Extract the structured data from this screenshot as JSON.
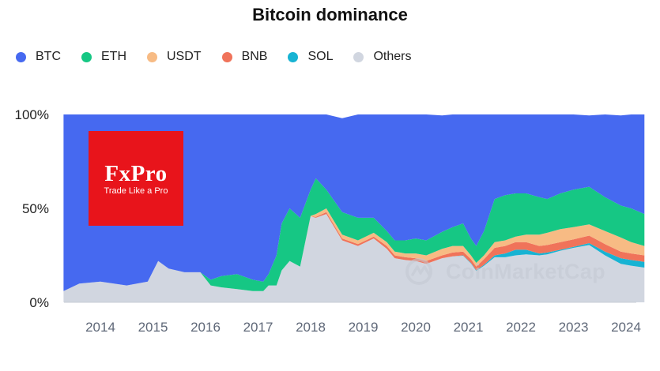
{
  "chart_data": {
    "type": "area",
    "stacked": true,
    "title": "Bitcoin dominance",
    "x_tick_labels": [
      "2014",
      "2015",
      "2016",
      "2017",
      "2018",
      "2019",
      "2020",
      "2021",
      "2022",
      "2023",
      "2024"
    ],
    "y_tick_labels": [
      "100%",
      "50%",
      "0%"
    ],
    "ylim": [
      0,
      100
    ],
    "legend_position": "top-left",
    "x": [
      2013.3,
      2013.6,
      2014.0,
      2014.5,
      2014.9,
      2015.1,
      2015.3,
      2015.6,
      2015.9,
      2016.1,
      2016.3,
      2016.6,
      2016.9,
      2017.1,
      2017.2,
      2017.35,
      2017.45,
      2017.6,
      2017.8,
      2018.0,
      2018.1,
      2018.3,
      2018.6,
      2018.9,
      2019.2,
      2019.45,
      2019.6,
      2019.8,
      2020.0,
      2020.2,
      2020.5,
      2020.7,
      2020.9,
      2021.05,
      2021.15,
      2021.3,
      2021.5,
      2021.7,
      2021.9,
      2022.1,
      2022.35,
      2022.5,
      2022.75,
      2023.0,
      2023.3,
      2023.6,
      2023.9,
      2024.1,
      2024.35
    ],
    "series": [
      {
        "name": "BTC",
        "color": "#4669f0",
        "values": [
          94,
          90,
          89,
          91,
          89,
          78,
          82,
          84,
          84,
          88,
          86,
          85,
          88,
          89,
          85,
          75,
          58,
          50,
          55,
          40,
          34,
          40,
          50,
          55,
          55,
          62,
          67,
          67,
          66,
          67,
          62,
          60,
          58,
          66,
          70,
          62,
          45,
          43,
          42,
          42,
          44,
          45,
          42,
          40,
          38,
          44,
          48,
          50,
          53
        ]
      },
      {
        "name": "ETH",
        "color": "#16c784",
        "values": [
          0,
          0,
          0,
          0,
          0,
          0,
          0,
          0,
          0,
          3,
          6,
          8,
          6,
          5,
          6,
          16,
          25,
          28,
          26,
          14,
          19,
          10,
          12,
          12,
          8,
          6,
          6,
          7,
          8,
          8,
          9,
          10,
          12,
          9,
          9,
          13,
          23,
          24,
          23,
          22,
          20,
          18,
          19,
          20,
          20,
          18,
          17,
          18,
          17
        ]
      },
      {
        "name": "USDT",
        "color": "#f7bb84",
        "values": [
          0,
          0,
          0,
          0,
          0,
          0,
          0,
          0,
          0,
          0,
          0,
          0,
          0,
          0,
          0,
          0,
          0,
          0,
          0,
          0.3,
          1.5,
          2,
          2,
          2,
          2,
          2,
          2,
          2,
          2.5,
          3,
          3.5,
          3.5,
          3,
          2,
          2,
          2,
          3,
          3,
          3,
          4,
          6,
          6.5,
          7,
          6.5,
          6,
          7,
          7.5,
          6,
          5
        ]
      },
      {
        "name": "BNB",
        "color": "#f0735a",
        "values": [
          0,
          0,
          0,
          0,
          0,
          0,
          0,
          0,
          0,
          0,
          0,
          0,
          0,
          0,
          0,
          0,
          0,
          0,
          0,
          0,
          0.5,
          1,
          1,
          1,
          1,
          1.5,
          1.5,
          1.5,
          1.5,
          1.5,
          1.5,
          2,
          2,
          2,
          2,
          3,
          4,
          4,
          4,
          4,
          4,
          4,
          4,
          4,
          4,
          4,
          3.5,
          3.5,
          3.5
        ]
      },
      {
        "name": "SOL",
        "color": "#17b3d3",
        "values": [
          0,
          0,
          0,
          0,
          0,
          0,
          0,
          0,
          0,
          0,
          0,
          0,
          0,
          0,
          0,
          0,
          0,
          0,
          0,
          0,
          0,
          0,
          0,
          0,
          0,
          0,
          0,
          0,
          0,
          0,
          0,
          0,
          0.2,
          0.3,
          0.3,
          0.5,
          1,
          2,
          3,
          2.5,
          1,
          1,
          0.5,
          0.5,
          1,
          2,
          3,
          3,
          3
        ]
      },
      {
        "name": "Others",
        "color": "#d1d6e0",
        "values": [
          6,
          10,
          11,
          9,
          11,
          22,
          18,
          16,
          16,
          9,
          8,
          7,
          6,
          6,
          9,
          9,
          17,
          22,
          19,
          45.7,
          45,
          47,
          33,
          30,
          34,
          28.5,
          23.5,
          22.5,
          22,
          20.5,
          23.5,
          24.5,
          24.8,
          20.7,
          16.7,
          19.5,
          24,
          24,
          25,
          25.5,
          25,
          25.5,
          27.5,
          29,
          30.5,
          25,
          20.5,
          19.5,
          18.5
        ]
      }
    ]
  },
  "watermark": {
    "text": "CoinMarketCap"
  },
  "logo": {
    "brand": "FxPro",
    "tagline": "Trade Like a Pro"
  }
}
